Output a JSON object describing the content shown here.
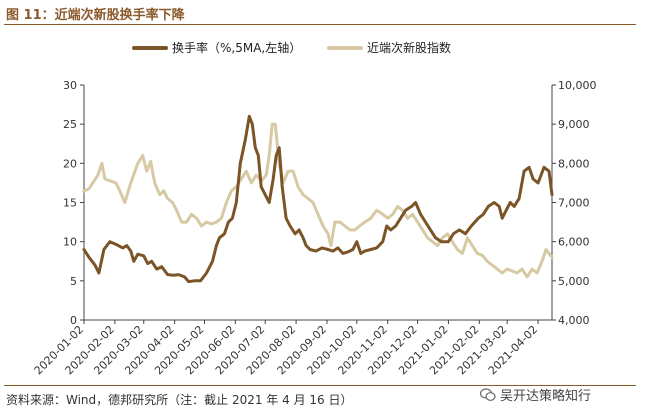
{
  "figure": {
    "title": "图 11：近端次新股换手率下降",
    "source": "资料来源：Wind，德邦研究所（注：截止 2021 年 4 月 16 日）",
    "watermark": "吴开达策略知行"
  },
  "chart_data": {
    "type": "line",
    "title": "",
    "legend_position": "top-center",
    "grid": false,
    "x_ticks": [
      "2020-01-02",
      "2020-02-02",
      "2020-03-02",
      "2020-04-02",
      "2020-05-02",
      "2020-06-02",
      "2020-07-02",
      "2020-08-02",
      "2020-09-02",
      "2020-10-02",
      "2020-11-02",
      "2020-12-02",
      "2021-01-02",
      "2021-02-02",
      "2021-03-02",
      "2021-04-02"
    ],
    "x_range": [
      "2020-01-02",
      "2021-04-16"
    ],
    "y_left": {
      "ticks": [
        "0",
        "5",
        "10",
        "15",
        "20",
        "25",
        "30"
      ],
      "range": [
        0,
        30
      ]
    },
    "y_right": {
      "ticks": [
        "4,000",
        "5,000",
        "6,000",
        "7,000",
        "8,000",
        "9,000",
        "10,000"
      ],
      "range": [
        4000,
        10000
      ]
    },
    "series": [
      {
        "name": "换手率（%,5MA,左轴）",
        "axis": "left",
        "color": "#7b5427",
        "points": [
          [
            "2020-01-02",
            9
          ],
          [
            "2020-01-07",
            8
          ],
          [
            "2020-01-13",
            7
          ],
          [
            "2020-01-17",
            6
          ],
          [
            "2020-01-22",
            9
          ],
          [
            "2020-01-28",
            10
          ],
          [
            "2020-02-04",
            9.6
          ],
          [
            "2020-02-10",
            9.2
          ],
          [
            "2020-02-14",
            9.5
          ],
          [
            "2020-02-18",
            8.8
          ],
          [
            "2020-02-21",
            7.5
          ],
          [
            "2020-02-25",
            8.4
          ],
          [
            "2020-03-02",
            8.2
          ],
          [
            "2020-03-06",
            7.2
          ],
          [
            "2020-03-10",
            7.5
          ],
          [
            "2020-03-15",
            6.5
          ],
          [
            "2020-03-20",
            6.8
          ],
          [
            "2020-03-26",
            5.8
          ],
          [
            "2020-04-01",
            5.7
          ],
          [
            "2020-04-06",
            5.8
          ],
          [
            "2020-04-12",
            5.5
          ],
          [
            "2020-04-16",
            4.9
          ],
          [
            "2020-04-22",
            5
          ],
          [
            "2020-04-28",
            5
          ],
          [
            "2020-05-04",
            6
          ],
          [
            "2020-05-10",
            7.5
          ],
          [
            "2020-05-14",
            9.5
          ],
          [
            "2020-05-17",
            10.5
          ],
          [
            "2020-05-22",
            11
          ],
          [
            "2020-05-26",
            12.5
          ],
          [
            "2020-05-30",
            13
          ],
          [
            "2020-06-03",
            15
          ],
          [
            "2020-06-07",
            20
          ],
          [
            "2020-06-12",
            23
          ],
          [
            "2020-06-16",
            26
          ],
          [
            "2020-06-19",
            25
          ],
          [
            "2020-06-22",
            22
          ],
          [
            "2020-06-25",
            21
          ],
          [
            "2020-06-28",
            17
          ],
          [
            "2020-07-02",
            16
          ],
          [
            "2020-07-06",
            15
          ],
          [
            "2020-07-10",
            18
          ],
          [
            "2020-07-13",
            21
          ],
          [
            "2020-07-16",
            22
          ],
          [
            "2020-07-19",
            17
          ],
          [
            "2020-07-23",
            13
          ],
          [
            "2020-07-27",
            12
          ],
          [
            "2020-08-01",
            11
          ],
          [
            "2020-08-05",
            11.5
          ],
          [
            "2020-08-09",
            10.5
          ],
          [
            "2020-08-12",
            9.5
          ],
          [
            "2020-08-16",
            9
          ],
          [
            "2020-08-22",
            8.8
          ],
          [
            "2020-08-28",
            9.2
          ],
          [
            "2020-09-03",
            9
          ],
          [
            "2020-09-08",
            8.8
          ],
          [
            "2020-09-13",
            9.2
          ],
          [
            "2020-09-18",
            8.5
          ],
          [
            "2020-09-23",
            8.7
          ],
          [
            "2020-09-28",
            9
          ],
          [
            "2020-10-02",
            10
          ],
          [
            "2020-10-06",
            8.5
          ],
          [
            "2020-10-10",
            8.8
          ],
          [
            "2020-10-16",
            9
          ],
          [
            "2020-10-22",
            9.2
          ],
          [
            "2020-10-28",
            10
          ],
          [
            "2020-11-01",
            12
          ],
          [
            "2020-11-05",
            11.5
          ],
          [
            "2020-11-10",
            12
          ],
          [
            "2020-11-15",
            13
          ],
          [
            "2020-11-20",
            14
          ],
          [
            "2020-11-26",
            14.5
          ],
          [
            "2020-11-30",
            15
          ],
          [
            "2020-12-05",
            13.5
          ],
          [
            "2020-12-10",
            12.5
          ],
          [
            "2020-12-15",
            11.5
          ],
          [
            "2020-12-20",
            10.5
          ],
          [
            "2020-12-26",
            10
          ],
          [
            "2021-01-02",
            10
          ],
          [
            "2021-01-07",
            11
          ],
          [
            "2021-01-13",
            11.5
          ],
          [
            "2021-01-19",
            11
          ],
          [
            "2021-01-25",
            12
          ],
          [
            "2021-02-01",
            13
          ],
          [
            "2021-02-06",
            13.5
          ],
          [
            "2021-02-11",
            14.5
          ],
          [
            "2021-02-17",
            15
          ],
          [
            "2021-02-22",
            14.5
          ],
          [
            "2021-02-25",
            13
          ],
          [
            "2021-03-01",
            14
          ],
          [
            "2021-03-05",
            15
          ],
          [
            "2021-03-09",
            14.5
          ],
          [
            "2021-03-14",
            15.5
          ],
          [
            "2021-03-19",
            19
          ],
          [
            "2021-03-24",
            19.5
          ],
          [
            "2021-03-28",
            18
          ],
          [
            "2021-04-02",
            17.5
          ],
          [
            "2021-04-08",
            19.5
          ],
          [
            "2021-04-13",
            19
          ],
          [
            "2021-04-16",
            16
          ]
        ]
      },
      {
        "name": "近端次新股指数",
        "axis": "right",
        "color": "#d6c9a4",
        "points": [
          [
            "2020-01-02",
            7300
          ],
          [
            "2020-01-07",
            7350
          ],
          [
            "2020-01-12",
            7550
          ],
          [
            "2020-01-16",
            7700
          ],
          [
            "2020-01-20",
            8000
          ],
          [
            "2020-01-23",
            7600
          ],
          [
            "2020-02-03",
            7500
          ],
          [
            "2020-02-07",
            7300
          ],
          [
            "2020-02-12",
            7000
          ],
          [
            "2020-02-18",
            7500
          ],
          [
            "2020-02-25",
            8000
          ],
          [
            "2020-03-01",
            8200
          ],
          [
            "2020-03-05",
            7800
          ],
          [
            "2020-03-09",
            8050
          ],
          [
            "2020-03-13",
            7500
          ],
          [
            "2020-03-18",
            7200
          ],
          [
            "2020-03-22",
            7300
          ],
          [
            "2020-03-26",
            7100
          ],
          [
            "2020-03-31",
            7000
          ],
          [
            "2020-04-04",
            6800
          ],
          [
            "2020-04-09",
            6500
          ],
          [
            "2020-04-14",
            6500
          ],
          [
            "2020-04-19",
            6700
          ],
          [
            "2020-04-24",
            6600
          ],
          [
            "2020-04-29",
            6400
          ],
          [
            "2020-05-04",
            6500
          ],
          [
            "2020-05-09",
            6450
          ],
          [
            "2020-05-14",
            6500
          ],
          [
            "2020-05-19",
            6600
          ],
          [
            "2020-05-24",
            7000
          ],
          [
            "2020-05-29",
            7300
          ],
          [
            "2020-06-03",
            7400
          ],
          [
            "2020-06-08",
            7600
          ],
          [
            "2020-06-13",
            7800
          ],
          [
            "2020-06-18",
            7500
          ],
          [
            "2020-06-23",
            7700
          ],
          [
            "2020-06-28",
            7550
          ],
          [
            "2020-07-03",
            7700
          ],
          [
            "2020-07-06",
            8200
          ],
          [
            "2020-07-09",
            9000
          ],
          [
            "2020-07-12",
            9000
          ],
          [
            "2020-07-16",
            8000
          ],
          [
            "2020-07-20",
            7500
          ],
          [
            "2020-07-25",
            7800
          ],
          [
            "2020-07-30",
            7800
          ],
          [
            "2020-08-04",
            7400
          ],
          [
            "2020-08-09",
            7200
          ],
          [
            "2020-08-14",
            7100
          ],
          [
            "2020-08-19",
            7000
          ],
          [
            "2020-08-24",
            6700
          ],
          [
            "2020-08-29",
            6400
          ],
          [
            "2020-09-03",
            6200
          ],
          [
            "2020-09-06",
            5900
          ],
          [
            "2020-09-10",
            6500
          ],
          [
            "2020-09-15",
            6500
          ],
          [
            "2020-09-20",
            6400
          ],
          [
            "2020-09-25",
            6300
          ],
          [
            "2020-09-30",
            6300
          ],
          [
            "2020-10-05",
            6400
          ],
          [
            "2020-10-10",
            6500
          ],
          [
            "2020-10-16",
            6600
          ],
          [
            "2020-10-22",
            6800
          ],
          [
            "2020-10-28",
            6700
          ],
          [
            "2020-11-02",
            6600
          ],
          [
            "2020-11-07",
            6700
          ],
          [
            "2020-11-12",
            6900
          ],
          [
            "2020-11-17",
            6800
          ],
          [
            "2020-11-22",
            6600
          ],
          [
            "2020-11-27",
            6700
          ],
          [
            "2020-12-02",
            6500
          ],
          [
            "2020-12-07",
            6300
          ],
          [
            "2020-12-12",
            6100
          ],
          [
            "2020-12-17",
            6000
          ],
          [
            "2020-12-22",
            5900
          ],
          [
            "2020-12-27",
            6100
          ],
          [
            "2021-01-01",
            6200
          ],
          [
            "2021-01-06",
            6000
          ],
          [
            "2021-01-11",
            5800
          ],
          [
            "2021-01-16",
            5700
          ],
          [
            "2021-01-21",
            6100
          ],
          [
            "2021-01-26",
            5900
          ],
          [
            "2021-01-31",
            5700
          ],
          [
            "2021-02-05",
            5650
          ],
          [
            "2021-02-10",
            5500
          ],
          [
            "2021-02-15",
            5400
          ],
          [
            "2021-02-20",
            5300
          ],
          [
            "2021-02-25",
            5200
          ],
          [
            "2021-03-02",
            5300
          ],
          [
            "2021-03-07",
            5250
          ],
          [
            "2021-03-12",
            5200
          ],
          [
            "2021-03-17",
            5300
          ],
          [
            "2021-03-22",
            5100
          ],
          [
            "2021-03-27",
            5300
          ],
          [
            "2021-04-01",
            5200
          ],
          [
            "2021-04-06",
            5500
          ],
          [
            "2021-04-10",
            5800
          ],
          [
            "2021-04-13",
            5700
          ],
          [
            "2021-04-16",
            5600
          ]
        ]
      }
    ]
  }
}
